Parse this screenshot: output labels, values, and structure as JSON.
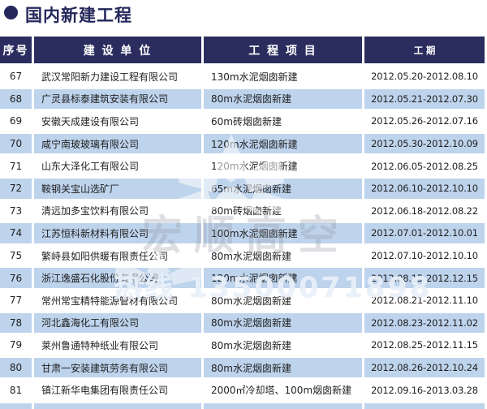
{
  "page": {
    "title": "国内新建工程"
  },
  "table": {
    "columns": [
      "序号",
      "建 设 单 位",
      "工 程 项 目",
      "工    期"
    ],
    "rows": [
      {
        "no": "67",
        "company": "武汉常阳新力建设工程有限公司",
        "project": "130m水泥烟囱新建",
        "period": "2012.05.20-2012.08.10"
      },
      {
        "no": "68",
        "company": "广灵县标泰建筑安装有限公司",
        "project": "80m水泥烟囱新建",
        "period": "2012.05.21-2012.07.30"
      },
      {
        "no": "69",
        "company": "安徽天成建设有限公司",
        "project": "60m砖烟囱新建",
        "period": "2012.05.26-2012.07.16"
      },
      {
        "no": "70",
        "company": "咸宁南玻玻璃有限公司",
        "project": "120m水泥烟囱新建",
        "period": "2012.05.30-2012.10.09"
      },
      {
        "no": "71",
        "company": "山东大泽化工有限公司",
        "project": "120m水泥烟囱新建",
        "period": "2012.06.05-2012.08.25"
      },
      {
        "no": "72",
        "company": "鞍钢关宝山选矿厂",
        "project": "65m水泥烟囱新建",
        "period": "2012.06.10-2012.10.10"
      },
      {
        "no": "73",
        "company": "清远加多宝饮料有限公司",
        "project": "80m砖烟囱新建",
        "period": "2012.06.18-2012.08.22"
      },
      {
        "no": "74",
        "company": "江苏恒科新材料有限公司",
        "project": "100m水泥烟囱新建",
        "period": "2012.07.01-2012.10.01"
      },
      {
        "no": "75",
        "company": "繁峙县如阳供暖有限责任公司",
        "project": "80m水泥烟囱新建",
        "period": "2012.07.10-2012.10.10"
      },
      {
        "no": "76",
        "company": "浙江逸盛石化股份有限公司",
        "project": "120m水泥烟囱新建",
        "period": "2012.08.15-2012.12.15"
      },
      {
        "no": "77",
        "company": "常州常宝精特能源管材有限公司",
        "project": "80m水泥烟囱新建",
        "period": "2012.08.21-2012.11.10"
      },
      {
        "no": "78",
        "company": "河北鑫海化工有限公司",
        "project": "80m水泥烟囱新建",
        "period": "2012.08.23-2012.11.02"
      },
      {
        "no": "79",
        "company": "莱州鲁通特种纸业有限公司",
        "project": "80m水泥烟囱新建",
        "period": "2012.08.25-2012.11.15"
      },
      {
        "no": "80",
        "company": "甘肃一安装建筑劳务有限公司",
        "project": "80m水泥烟囱新建",
        "period": "2012.08.26-2012.10.24"
      },
      {
        "no": "81",
        "company": "镇江新华电集团有限责任公司",
        "project": "2000㎡冷却塔、100m烟囱新建",
        "period": "2012.09.16-2013.03.28"
      }
    ]
  },
  "watermark": {
    "brand": "宏顺高空",
    "hotline": "热线 13500071898"
  },
  "colors": {
    "header_bg": "#2a2d5e",
    "alt_row_bg": "#bed3ec",
    "title_color": "#23275a"
  }
}
